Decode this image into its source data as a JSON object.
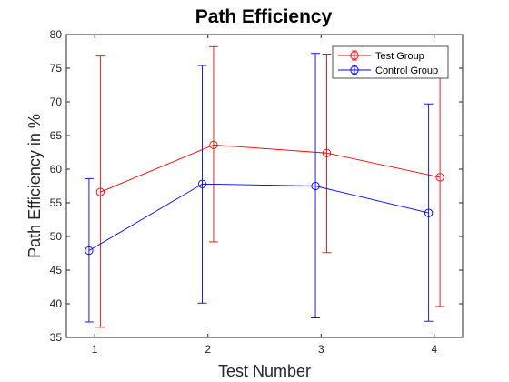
{
  "chart_data": {
    "type": "line",
    "title": "Path Efficiency",
    "xlabel": "Test Number",
    "ylabel": "Path Efficiency in %",
    "x": [
      1,
      2,
      3,
      4
    ],
    "x_ticks": [
      "1",
      "2",
      "3",
      "4"
    ],
    "xlim": [
      0.75,
      4.25
    ],
    "ylim": [
      35,
      80
    ],
    "y_ticks": [
      "35",
      "40",
      "45",
      "50",
      "55",
      "60",
      "65",
      "70",
      "75",
      "80"
    ],
    "grid": false,
    "legend_position": "top-right",
    "series": [
      {
        "name": "Test Group",
        "color": "#ff0000",
        "marker": "circle",
        "x": [
          1.05,
          2.05,
          3.05,
          4.05
        ],
        "values": [
          56.6,
          63.6,
          62.4,
          58.8
        ],
        "err_low": [
          36.5,
          49.2,
          47.6,
          39.6
        ],
        "err_high": [
          76.8,
          78.2,
          77.1,
          75.9
        ]
      },
      {
        "name": "Control Group",
        "color": "#0000ff",
        "marker": "circle",
        "x": [
          0.95,
          1.95,
          2.95,
          3.95
        ],
        "values": [
          47.9,
          57.8,
          57.5,
          53.5
        ],
        "err_low": [
          37.3,
          40.1,
          37.9,
          37.4
        ],
        "err_high": [
          58.6,
          75.4,
          77.2,
          69.7
        ]
      }
    ]
  }
}
